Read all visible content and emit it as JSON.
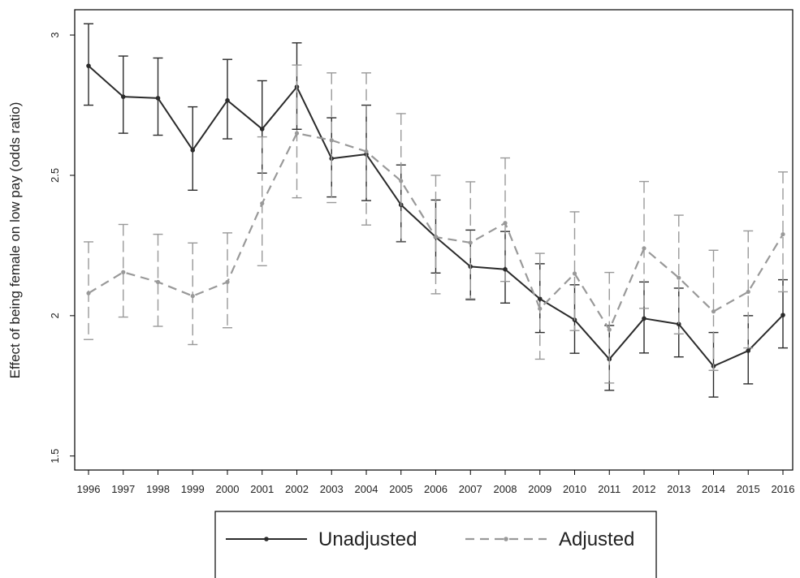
{
  "chart_data": {
    "type": "line",
    "title": "",
    "xlabel": "",
    "ylabel": "Effect of being female on low pay (odds ratio)",
    "x": [
      1996,
      1997,
      1998,
      1999,
      2000,
      2001,
      2002,
      2003,
      2004,
      2005,
      2006,
      2007,
      2008,
      2009,
      2010,
      2011,
      2012,
      2013,
      2014,
      2015,
      2016
    ],
    "ylim": [
      1.45,
      3.09
    ],
    "yticks": [
      1.5,
      2,
      2.5,
      3
    ],
    "ytick_labels": [
      "1.5",
      "2",
      "2.5",
      "3"
    ],
    "grid": false,
    "legend_position": "bottom",
    "series": [
      {
        "name": "Unadjusted",
        "color": "#2b2b2b",
        "line_style": "solid",
        "values": [
          2.89,
          2.78,
          2.775,
          2.59,
          2.767,
          2.665,
          2.815,
          2.56,
          2.575,
          2.395,
          2.28,
          2.175,
          2.165,
          2.06,
          1.985,
          1.845,
          1.99,
          1.97,
          1.82,
          1.875,
          2.002
        ],
        "lower": [
          2.75,
          2.65,
          2.643,
          2.447,
          2.63,
          2.508,
          2.664,
          2.423,
          2.41,
          2.264,
          2.152,
          2.057,
          2.045,
          1.94,
          1.866,
          1.734,
          1.867,
          1.853,
          1.71,
          1.757,
          1.885
        ],
        "upper": [
          3.04,
          2.925,
          2.918,
          2.744,
          2.913,
          2.837,
          2.972,
          2.705,
          2.75,
          2.537,
          2.412,
          2.305,
          2.3,
          2.185,
          2.11,
          1.965,
          2.12,
          2.098,
          1.94,
          2.0,
          2.128
        ]
      },
      {
        "name": "Adjusted",
        "color": "#999999",
        "line_style": "dashed",
        "values": [
          2.08,
          2.155,
          2.12,
          2.07,
          2.12,
          2.4,
          2.65,
          2.625,
          2.585,
          2.48,
          2.28,
          2.26,
          2.33,
          2.025,
          2.15,
          1.95,
          2.24,
          2.135,
          2.015,
          2.085,
          2.29
        ],
        "lower": [
          1.915,
          1.995,
          1.962,
          1.897,
          1.957,
          2.178,
          2.42,
          2.403,
          2.323,
          2.262,
          2.078,
          2.06,
          2.122,
          1.845,
          1.947,
          1.76,
          2.026,
          1.935,
          1.805,
          1.885,
          2.085
        ],
        "upper": [
          2.263,
          2.325,
          2.29,
          2.259,
          2.295,
          2.637,
          2.893,
          2.865,
          2.865,
          2.72,
          2.5,
          2.477,
          2.562,
          2.222,
          2.37,
          2.154,
          2.478,
          2.358,
          2.233,
          2.302,
          2.512
        ]
      }
    ]
  }
}
